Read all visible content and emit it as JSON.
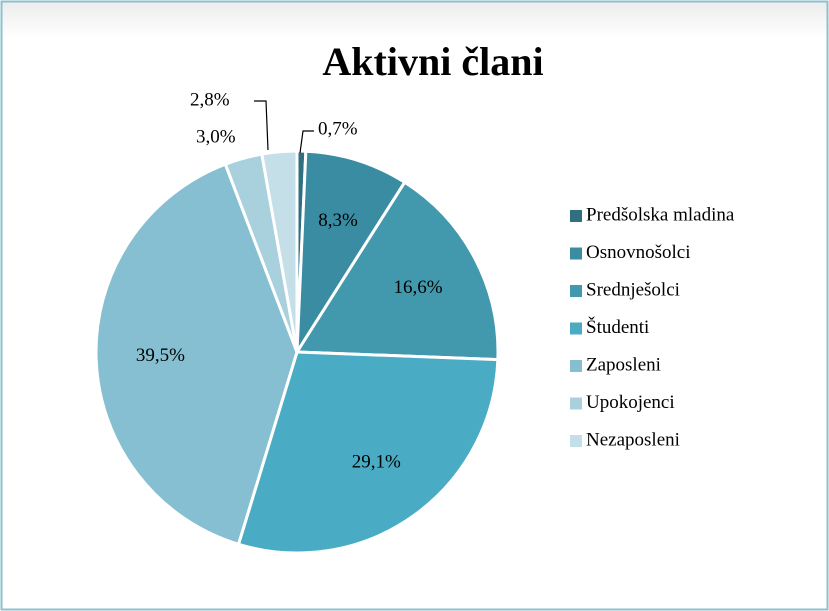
{
  "chart_data": {
    "type": "pie",
    "title": "Aktivni člani",
    "categories": [
      "Predšolska mladina",
      "Osnovnošolci",
      "Srednješolci",
      "Študenti",
      "Zaposleni",
      "Upokojenci",
      "Nezaposleni"
    ],
    "values": [
      0.7,
      8.3,
      16.6,
      29.1,
      39.5,
      3.0,
      2.8
    ],
    "value_labels": [
      "0,7%",
      "8,3%",
      "16,6%",
      "29,1%",
      "39,5%",
      "3,0%",
      "2,8%"
    ],
    "colors": [
      "#2f6f80",
      "#3a8ca2",
      "#4299ae",
      "#4aacc4",
      "#86bfd1",
      "#a8d0dd",
      "#c4dfe7"
    ],
    "legend": "right"
  }
}
